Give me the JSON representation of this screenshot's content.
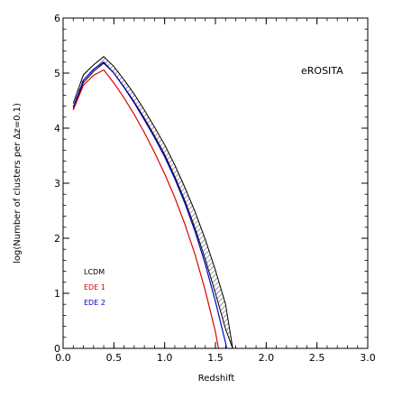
{
  "chart_data": {
    "type": "line",
    "title": "",
    "xlabel": "Redshift",
    "ylabel": "log(Number of clusters per Δz=0.1)",
    "xlim": [
      0.0,
      3.0
    ],
    "ylim": [
      0.0,
      6.0
    ],
    "xticks": [
      0.0,
      0.5,
      1.0,
      1.5,
      2.0,
      2.5,
      3.0
    ],
    "xtick_labels": [
      "0.0",
      "0.5",
      "1.0",
      "1.5",
      "2.0",
      "2.5",
      "3.0"
    ],
    "yticks": [
      0,
      1,
      2,
      3,
      4,
      5,
      6
    ],
    "ytick_labels": [
      "0",
      "1",
      "2",
      "3",
      "4",
      "5",
      "6"
    ],
    "annotation": "eROSITA",
    "legend_placement": "bottom-left",
    "grid": false,
    "colors": {
      "LCDM": "#000000",
      "EDE 1": "#e00000",
      "EDE 2": "#0000cc"
    },
    "series": [
      {
        "name": "LCDM",
        "style": "hatched-band",
        "x": [
          0.1,
          0.2,
          0.3,
          0.4,
          0.5,
          0.6,
          0.7,
          0.8,
          0.9,
          1.0,
          1.1,
          1.2,
          1.3,
          1.4,
          1.5,
          1.6,
          1.67
        ],
        "lower": [
          4.35,
          4.83,
          5.03,
          5.18,
          5.0,
          4.75,
          4.48,
          4.18,
          3.86,
          3.52,
          3.12,
          2.68,
          2.18,
          1.62,
          1.0,
          0.35,
          0.0
        ],
        "upper": [
          4.45,
          4.97,
          5.15,
          5.3,
          5.12,
          4.88,
          4.62,
          4.33,
          4.02,
          3.7,
          3.33,
          2.92,
          2.48,
          1.98,
          1.42,
          0.8,
          0.0
        ]
      },
      {
        "name": "EDE 1",
        "x": [
          0.1,
          0.2,
          0.3,
          0.4,
          0.5,
          0.6,
          0.7,
          0.8,
          0.9,
          1.0,
          1.1,
          1.2,
          1.3,
          1.4,
          1.5,
          1.53
        ],
        "values": [
          4.33,
          4.78,
          4.96,
          5.06,
          4.82,
          4.55,
          4.25,
          3.92,
          3.56,
          3.17,
          2.74,
          2.25,
          1.7,
          1.05,
          0.3,
          0.0
        ]
      },
      {
        "name": "EDE 2",
        "x": [
          0.1,
          0.2,
          0.3,
          0.4,
          0.5,
          0.6,
          0.7,
          0.8,
          0.9,
          1.0,
          1.1,
          1.2,
          1.3,
          1.4,
          1.5,
          1.6,
          1.61
        ],
        "values": [
          4.38,
          4.87,
          5.07,
          5.2,
          5.0,
          4.74,
          4.46,
          4.15,
          3.83,
          3.48,
          3.08,
          2.63,
          2.12,
          1.53,
          0.85,
          0.1,
          0.0
        ]
      }
    ]
  }
}
